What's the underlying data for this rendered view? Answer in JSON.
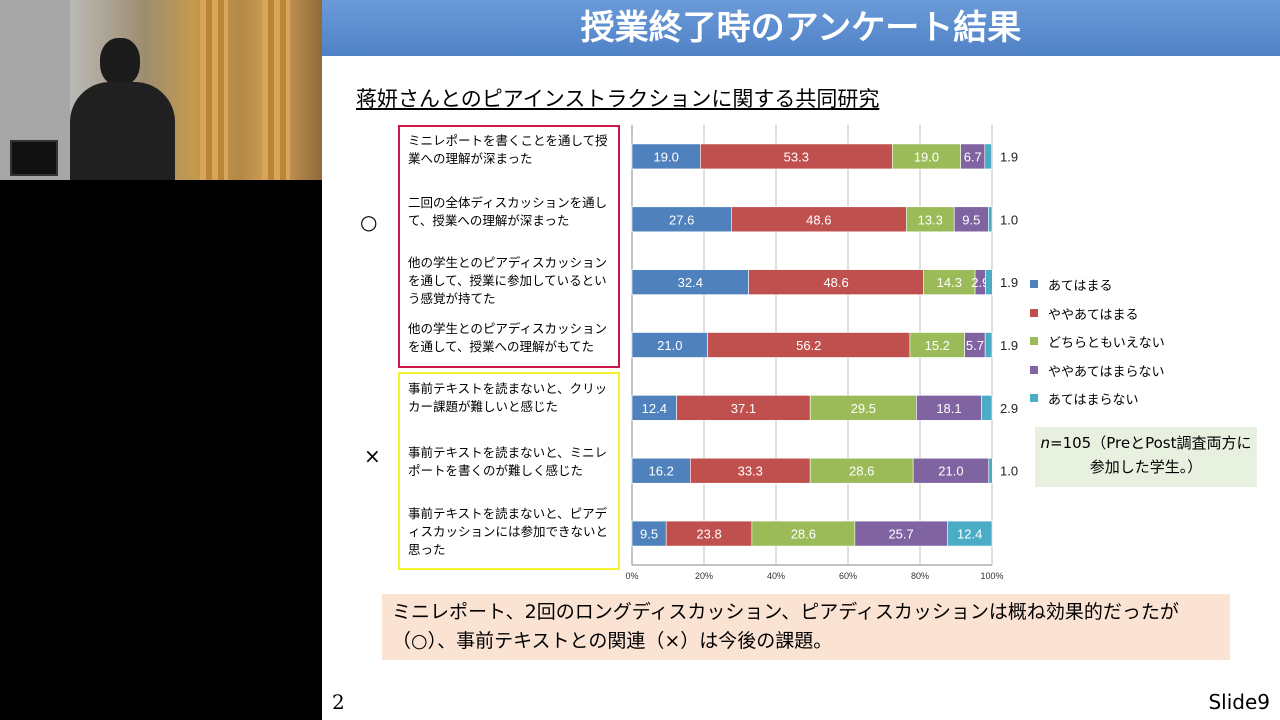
{
  "slide": {
    "title": "授業終了時のアンケート結果",
    "subtitle": "蒋妍さんとのピアインストラクションに関する共同研究",
    "positive_mark": "○",
    "negative_mark": "×",
    "note_n": "n",
    "note_text": "=105（PreとPost調査両方に参加した学生。）",
    "conclusion": "ミニレポート、2回のロングディスカッション、ピアディスカッションは概ね効果的だったが（○）、事前テキストとの関連（×）は今後の課題。",
    "page_number": "2",
    "slide_label": "Slide9"
  },
  "questions": [
    "ミニレポートを書くことを通して授業への理解が深まった",
    "二回の全体ディスカッションを通して、授業への理解が深まった",
    "他の学生とのピアディスカッションを通して、授業に参加しているという感覚が持てた",
    "他の学生とのピアディスカッションを通して、授業への理解がもてた",
    "事前テキストを読まないと、クリッカー課題が難しいと感じた",
    "事前テキストを読まないと、ミニレポートを書くのが難しく感じた",
    "事前テキストを読まないと、ピアディスカッションには参加できないと思った"
  ],
  "chart_data": {
    "type": "bar",
    "orientation": "horizontal",
    "stacked": true,
    "percent": true,
    "categories": [
      "ミニレポートを書くことを通して授業への理解が深まった",
      "二回の全体ディスカッションを通して、授業への理解が深まった",
      "他の学生とのピアディスカッションを通して、授業に参加しているという感覚が持てた",
      "他の学生とのピアディスカッションを通して、授業への理解がもてた",
      "事前テキストを読まないと、クリッカー課題が難しいと感じた",
      "事前テキストを読まないと、ミニレポートを書くのが難しく感じた",
      "事前テキストを読まないと、ピアディスカッションには参加できないと思った"
    ],
    "series": [
      {
        "name": "あてはまる",
        "color": "#4f81bd",
        "values": [
          19.0,
          27.6,
          32.4,
          21.0,
          12.4,
          16.2,
          9.5
        ]
      },
      {
        "name": "ややあてはまる",
        "color": "#c0504d",
        "values": [
          53.3,
          48.6,
          48.6,
          56.2,
          37.1,
          33.3,
          23.8
        ]
      },
      {
        "name": "どちらともいえない",
        "color": "#9bbb59",
        "values": [
          19.0,
          13.3,
          14.3,
          15.2,
          29.5,
          28.6,
          28.6
        ]
      },
      {
        "name": "ややあてはまらない",
        "color": "#8064a2",
        "values": [
          6.7,
          9.5,
          2.9,
          5.7,
          18.1,
          21.0,
          25.7
        ]
      },
      {
        "name": "あてはまらない",
        "color": "#4bacc6",
        "values": [
          1.9,
          1.0,
          1.9,
          1.9,
          2.9,
          1.0,
          12.4
        ]
      }
    ],
    "xlim": [
      0,
      100
    ],
    "xticks": [
      "0%",
      "20%",
      "40%",
      "60%",
      "80%",
      "100%"
    ],
    "grid": true,
    "legend_position": "right"
  }
}
